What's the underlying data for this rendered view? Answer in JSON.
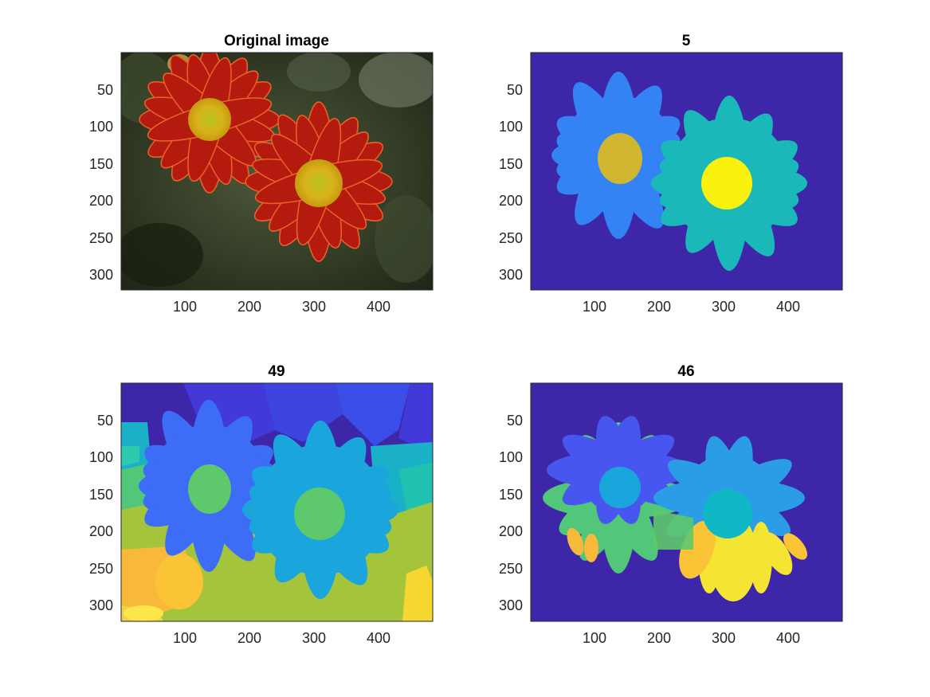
{
  "figure": {
    "panels": [
      {
        "id": "original",
        "title": "Original image",
        "kind": "photo",
        "xticks": [
          "100",
          "200",
          "300",
          "400"
        ],
        "yticks": [
          "50",
          "100",
          "150",
          "200",
          "250",
          "300"
        ]
      },
      {
        "id": "seg5",
        "title": "5",
        "kind": "segmentation",
        "xticks": [
          "100",
          "200",
          "300",
          "400"
        ],
        "yticks": [
          "50",
          "100",
          "150",
          "200",
          "250",
          "300"
        ]
      },
      {
        "id": "seg49",
        "title": "49",
        "kind": "segmentation",
        "xticks": [
          "100",
          "200",
          "300",
          "400"
        ],
        "yticks": [
          "50",
          "100",
          "150",
          "200",
          "250",
          "300"
        ]
      },
      {
        "id": "seg46",
        "title": "46",
        "kind": "segmentation",
        "xticks": [
          "100",
          "200",
          "300",
          "400"
        ],
        "yticks": [
          "50",
          "100",
          "150",
          "200",
          "250",
          "300"
        ]
      }
    ],
    "colors": {
      "parula_dark": "#3e26a8",
      "parula_blue": "#3d6df7",
      "parula_lightblue": "#2fa6ea",
      "parula_cyan": "#1ab8c8",
      "parula_teal": "#20c1b0",
      "parula_green": "#5ec96c",
      "parula_olive": "#a4c43b",
      "parula_gold": "#d1b62f",
      "parula_orange": "#f8b93a",
      "parula_yellow": "#f9f20f",
      "petal_red": "#b41a0e",
      "foliage_dark": "#2f3a22"
    }
  }
}
